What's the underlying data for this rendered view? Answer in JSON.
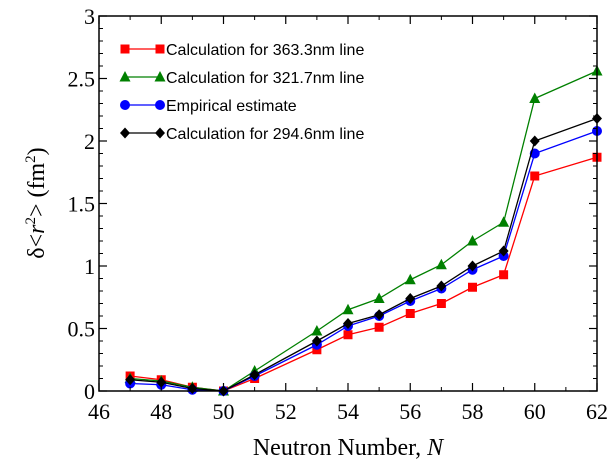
{
  "chart_data": {
    "type": "line",
    "xlabel": "Neutron Number, ",
    "xlabel_symbol": "N",
    "ylabel_prefix": "δ<",
    "ylabel_var": "r",
    "ylabel_exp": "2",
    "ylabel_mid": "> (fm",
    "ylabel_exp2": "2",
    "ylabel_suffix": ")",
    "xlim": [
      46,
      62
    ],
    "ylim": [
      0,
      3
    ],
    "xticks": [
      46,
      48,
      50,
      52,
      54,
      56,
      58,
      60,
      62
    ],
    "yticks": [
      0,
      0.5,
      1,
      1.5,
      2,
      2.5,
      3
    ],
    "ytick_labels": [
      "0",
      "0.5",
      "1",
      "1.5",
      "2",
      "2.5",
      "3"
    ],
    "legend_position": "top-left",
    "series": [
      {
        "name": "Calculation for 363.3nm line",
        "color": "#ff0000",
        "marker": "square",
        "x": [
          47,
          48,
          49,
          50,
          51,
          53,
          54,
          55,
          56,
          57,
          58,
          59,
          60,
          62
        ],
        "y": [
          0.12,
          0.09,
          0.03,
          0.0,
          0.1,
          0.33,
          0.45,
          0.51,
          0.62,
          0.7,
          0.83,
          0.93,
          1.72,
          1.87
        ]
      },
      {
        "name": "Calculation for 321.7nm line",
        "color": "#008000",
        "marker": "triangle",
        "x": [
          47,
          48,
          49,
          50,
          51,
          53,
          54,
          55,
          56,
          57,
          58,
          59,
          60,
          62
        ],
        "y": [
          0.1,
          0.08,
          0.03,
          0.0,
          0.16,
          0.48,
          0.65,
          0.74,
          0.89,
          1.01,
          1.2,
          1.35,
          2.34,
          2.56
        ]
      },
      {
        "name": "Empirical estimate",
        "color": "#0000ff",
        "marker": "circle",
        "x": [
          47,
          48,
          49,
          50,
          51,
          53,
          54,
          55,
          56,
          57,
          58,
          59,
          60,
          62
        ],
        "y": [
          0.06,
          0.05,
          0.01,
          0.0,
          0.12,
          0.37,
          0.52,
          0.6,
          0.72,
          0.82,
          0.97,
          1.08,
          1.9,
          2.08
        ]
      },
      {
        "name": "Calculation for 294.6nm line",
        "color": "#000000",
        "marker": "diamond",
        "x": [
          47,
          48,
          49,
          50,
          51,
          53,
          54,
          55,
          56,
          57,
          58,
          59,
          60,
          62
        ],
        "y": [
          0.09,
          0.07,
          0.02,
          0.0,
          0.13,
          0.4,
          0.54,
          0.61,
          0.74,
          0.84,
          1.0,
          1.12,
          2.0,
          2.18
        ]
      }
    ]
  }
}
